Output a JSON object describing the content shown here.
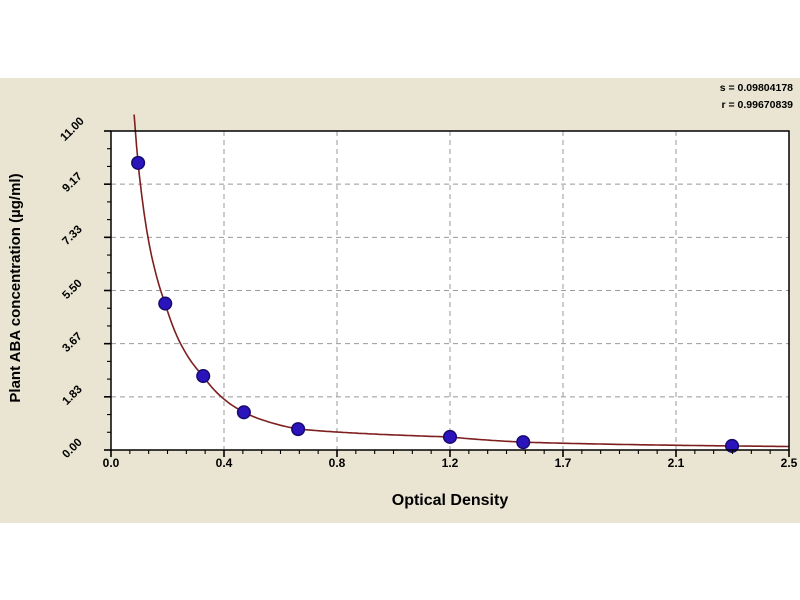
{
  "chart_data": {
    "type": "scatter",
    "title": "",
    "xlabel": "Optical Density",
    "ylabel": "Plant ABA concentration (µg/ml)",
    "xlim": [
      0,
      2.5
    ],
    "ylim": [
      0,
      11
    ],
    "x_tick_labels": [
      "0.0",
      "0.4",
      "0.8",
      "1.2",
      "1.7",
      "2.1",
      "2.5"
    ],
    "y_tick_labels": [
      "0.00",
      "1.83",
      "3.67",
      "5.50",
      "7.33",
      "9.17",
      "11.00"
    ],
    "grid": true,
    "legend_position": "none",
    "annotations": [
      {
        "text": "s = 0.09804178"
      },
      {
        "text": "r = 0.99670839"
      }
    ],
    "series": [
      {
        "name": "standard-points",
        "type": "scatter",
        "marker": "circle",
        "points": [
          {
            "x": 0.1,
            "y": 9.9
          },
          {
            "x": 0.2,
            "y": 5.05
          },
          {
            "x": 0.34,
            "y": 2.55
          },
          {
            "x": 0.49,
            "y": 1.3
          },
          {
            "x": 0.69,
            "y": 0.72
          },
          {
            "x": 1.25,
            "y": 0.45
          },
          {
            "x": 1.52,
            "y": 0.27
          },
          {
            "x": 2.29,
            "y": 0.14
          }
        ]
      },
      {
        "name": "fitted-curve",
        "type": "line",
        "fit": "hyperbolic-through-points",
        "source": "standard-points"
      }
    ]
  },
  "colors": {
    "figure_bg": "#ffffff",
    "panel_bg": "#e9e5d2",
    "plot_bg": "#ffffff",
    "grid": "#999999",
    "axis": "#000000",
    "curve": "#7e1f1f",
    "marker_fill": "#2c14bd",
    "marker_stroke": "#170a6e",
    "text": "#000000"
  }
}
